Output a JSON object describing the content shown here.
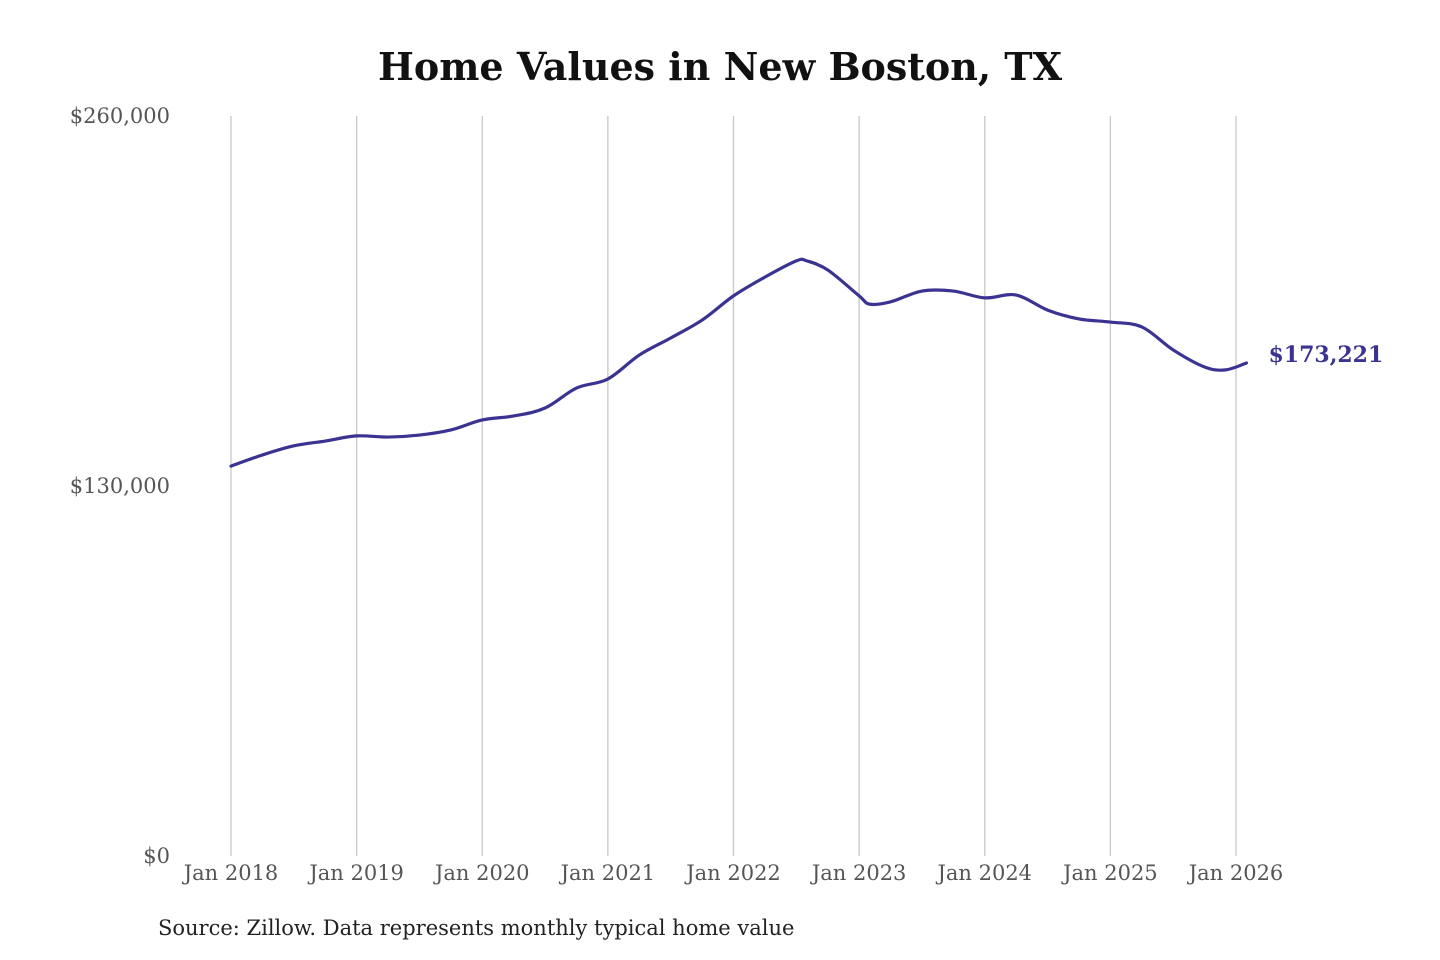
{
  "chart_data": {
    "type": "line",
    "title": "Home Values in New Boston, TX",
    "source": "Source: Zillow. Data represents monthly typical home value",
    "xlabel": "",
    "ylabel": "",
    "ylim": [
      0,
      260000
    ],
    "y_ticks": [
      0,
      130000,
      260000
    ],
    "y_tick_labels": [
      "$0",
      "$130,000",
      "$260,000"
    ],
    "x_ticks": [
      "2018-01",
      "2019-01",
      "2020-01",
      "2021-01",
      "2022-01",
      "2023-01",
      "2024-01",
      "2025-01",
      "2026-01"
    ],
    "x_tick_labels": [
      "Jan 2018",
      "Jan 2019",
      "Jan 2020",
      "Jan 2021",
      "Jan 2022",
      "Jan 2023",
      "Jan 2024",
      "Jan 2025",
      "Jan 2026"
    ],
    "grid": "vertical lines at x ticks",
    "line_color": "#3a3391",
    "end_label": "$173,221",
    "series": [
      {
        "x": [
          "2018-01",
          "2018-04",
          "2018-07",
          "2018-10",
          "2019-01",
          "2019-04",
          "2019-07",
          "2019-10",
          "2020-01",
          "2020-04",
          "2020-07",
          "2020-10",
          "2021-01",
          "2021-04",
          "2021-07",
          "2021-10",
          "2022-01",
          "2022-04",
          "2022-07",
          "2022-08",
          "2022-10",
          "2023-01",
          "2023-02",
          "2023-04",
          "2023-07",
          "2023-10",
          "2024-01",
          "2024-04",
          "2024-07",
          "2024-10",
          "2025-01",
          "2025-04",
          "2025-07",
          "2025-10",
          "2025-12",
          "2026-02"
        ],
        "values": [
          137000,
          140900,
          144100,
          145800,
          147600,
          147200,
          147900,
          149700,
          153200,
          154600,
          157400,
          164400,
          167600,
          176000,
          182000,
          188300,
          196800,
          203400,
          209100,
          209100,
          205900,
          196800,
          193900,
          194700,
          198500,
          198500,
          196100,
          197100,
          191800,
          188700,
          187600,
          185900,
          177800,
          171800,
          170800,
          173221
        ]
      }
    ]
  }
}
